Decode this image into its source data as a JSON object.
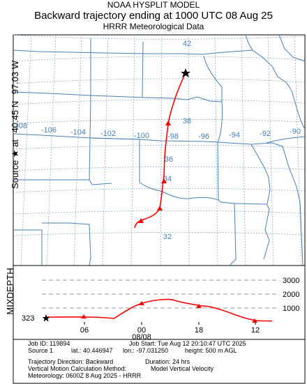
{
  "title": {
    "line1": "NOAA HYSPLIT MODEL",
    "line2": "Backward trajectory ending at 1000 UTC 08 Aug 25",
    "line3": "HRRR Meteorological Data"
  },
  "side_label": {
    "source": "Source ★ at",
    "lat": "40.45 N",
    "lon": "97.03 W"
  },
  "map": {
    "lat_labels": [
      "42",
      "38",
      "36",
      "34",
      "32"
    ],
    "lon_labels": [
      "-108",
      "-106",
      "-104",
      "-102",
      "-100",
      "-98",
      "-96",
      "-94",
      "-92",
      "-90"
    ],
    "colors": {
      "trajectory": "#ff0000",
      "boundary": "#4a7fb5",
      "grid": "#7fa3c8"
    }
  },
  "mixdepth": {
    "label": "MIXDEPTH",
    "start_value": "323",
    "levels": [
      "3000",
      "2000",
      "1000"
    ],
    "time_ticks": [
      "06",
      "00",
      "18",
      "12"
    ],
    "date_label": "08/08"
  },
  "info": {
    "job_id": "Job ID: 119894",
    "job_start": "Job Start: Tue Aug 12 20:10:47 UTC 2025",
    "source": "Source 1",
    "lat": "lat.: 40.446947",
    "lon": "lon.: -97.031250",
    "height": "height: 500 m AGL",
    "direction": "Trajectory Direction: Backward",
    "duration": "Duration: 24 hrs",
    "vertical": "Vertical Motion Calculation Method:",
    "vertical_value": "Model Vertical Velocity",
    "meteorology": "Meteorology: 0600Z 8 Aug 2025 - HRRR"
  }
}
